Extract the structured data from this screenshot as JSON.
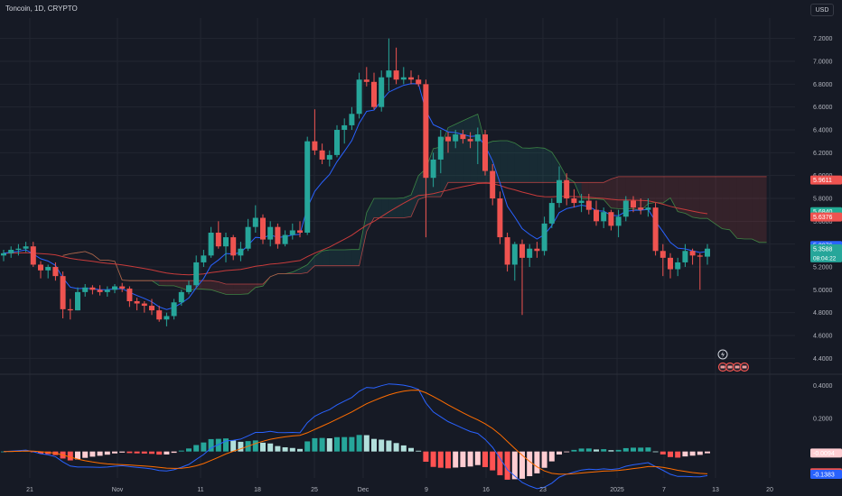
{
  "header": {
    "title": "Toncoin, 1D, CRYPTO",
    "currency": "USD"
  },
  "colors": {
    "background": "#161a25",
    "up": "#26a69a",
    "down": "#ef5350",
    "grid": "#222631",
    "macd": "#2962ff",
    "signal": "#ff6d00",
    "hist_up_strong": "#26a69a",
    "hist_up_weak": "#b2dfdb",
    "hist_down_strong": "#ff5252",
    "hist_down_weak": "#ffcdd2"
  },
  "chart_data": {
    "type": "candlestick",
    "x_ticks": [
      "21",
      "Nov",
      "11",
      "18",
      "25",
      "Dec",
      "9",
      "16",
      "23",
      "2025",
      "7",
      "13",
      "20"
    ],
    "y_ticks": [
      "4.4000",
      "4.6000",
      "4.8000",
      "5.0000",
      "5.2000",
      "5.4000",
      "5.6000",
      "5.8000",
      "6.0000",
      "6.2000",
      "6.4000",
      "6.6000",
      "6.8000",
      "7.0000",
      "7.2000"
    ],
    "ylim": [
      4.3,
      7.3
    ],
    "candles": [
      [
        5.3,
        5.35,
        5.25,
        5.32
      ],
      [
        5.32,
        5.38,
        5.28,
        5.35
      ],
      [
        5.35,
        5.4,
        5.3,
        5.36
      ],
      [
        5.36,
        5.42,
        5.33,
        5.38
      ],
      [
        5.38,
        5.42,
        5.2,
        5.22
      ],
      [
        5.22,
        5.25,
        5.1,
        5.17
      ],
      [
        5.17,
        5.22,
        5.1,
        5.2
      ],
      [
        5.2,
        5.24,
        5.08,
        5.12
      ],
      [
        5.12,
        5.16,
        4.75,
        4.83
      ],
      [
        4.83,
        4.92,
        4.74,
        4.82
      ],
      [
        4.82,
        5.02,
        4.82,
        4.98
      ],
      [
        4.98,
        5.05,
        4.94,
        5.02
      ],
      [
        5.02,
        5.04,
        4.96,
        5.0
      ],
      [
        5.0,
        5.04,
        4.95,
        4.98
      ],
      [
        4.98,
        5.03,
        4.94,
        5.0
      ],
      [
        5.0,
        5.05,
        4.97,
        5.03
      ],
      [
        5.03,
        5.06,
        4.98,
        5.01
      ],
      [
        5.01,
        5.03,
        4.85,
        4.9
      ],
      [
        4.9,
        4.93,
        4.82,
        4.88
      ],
      [
        4.88,
        4.9,
        4.8,
        4.86
      ],
      [
        4.86,
        4.92,
        4.78,
        4.82
      ],
      [
        4.82,
        4.86,
        4.72,
        4.74
      ],
      [
        4.74,
        4.8,
        4.68,
        4.77
      ],
      [
        4.77,
        4.92,
        4.74,
        4.89
      ],
      [
        4.89,
        5.0,
        4.86,
        4.98
      ],
      [
        4.98,
        5.08,
        4.96,
        5.04
      ],
      [
        5.04,
        5.3,
        5.02,
        5.24
      ],
      [
        5.24,
        5.35,
        5.2,
        5.3
      ],
      [
        5.3,
        5.55,
        5.28,
        5.5
      ],
      [
        5.5,
        5.6,
        5.36,
        5.38
      ],
      [
        5.38,
        5.5,
        5.24,
        5.46
      ],
      [
        5.46,
        5.48,
        5.26,
        5.3
      ],
      [
        5.3,
        5.42,
        5.25,
        5.36
      ],
      [
        5.36,
        5.62,
        5.34,
        5.55
      ],
      [
        5.55,
        5.74,
        5.5,
        5.63
      ],
      [
        5.63,
        5.66,
        5.4,
        5.44
      ],
      [
        5.44,
        5.6,
        5.38,
        5.55
      ],
      [
        5.55,
        5.58,
        5.36,
        5.4
      ],
      [
        5.4,
        5.52,
        5.38,
        5.48
      ],
      [
        5.48,
        5.58,
        5.44,
        5.52
      ],
      [
        5.52,
        5.6,
        5.46,
        5.5
      ],
      [
        5.5,
        6.34,
        5.48,
        6.3
      ],
      [
        6.3,
        6.58,
        6.18,
        6.22
      ],
      [
        6.22,
        6.28,
        6.1,
        6.14
      ],
      [
        6.14,
        6.22,
        6.08,
        6.18
      ],
      [
        6.18,
        6.44,
        6.16,
        6.4
      ],
      [
        6.4,
        6.5,
        6.28,
        6.44
      ],
      [
        6.44,
        6.6,
        6.4,
        6.54
      ],
      [
        6.54,
        6.9,
        6.5,
        6.84
      ],
      [
        6.84,
        6.95,
        6.78,
        6.82
      ],
      [
        6.82,
        6.9,
        6.58,
        6.6
      ],
      [
        6.6,
        6.92,
        6.56,
        6.86
      ],
      [
        6.86,
        7.2,
        6.74,
        6.92
      ],
      [
        6.92,
        7.12,
        6.8,
        6.84
      ],
      [
        6.84,
        6.95,
        6.8,
        6.86
      ],
      [
        6.86,
        6.92,
        6.8,
        6.84
      ],
      [
        6.84,
        6.88,
        6.78,
        6.8
      ],
      [
        6.8,
        6.84,
        5.46,
        5.98
      ],
      [
        5.98,
        6.2,
        5.9,
        6.14
      ],
      [
        6.14,
        6.4,
        6.02,
        6.34
      ],
      [
        6.34,
        6.38,
        6.2,
        6.3
      ],
      [
        6.3,
        6.4,
        6.24,
        6.36
      ],
      [
        6.36,
        6.4,
        6.28,
        6.32
      ],
      [
        6.32,
        6.38,
        6.24,
        6.3
      ],
      [
        6.3,
        6.42,
        6.1,
        6.36
      ],
      [
        6.36,
        6.4,
        6.0,
        6.04
      ],
      [
        6.04,
        6.1,
        5.74,
        5.8
      ],
      [
        5.8,
        5.86,
        5.4,
        5.46
      ],
      [
        5.46,
        5.5,
        5.16,
        5.22
      ],
      [
        5.22,
        5.42,
        5.08,
        5.4
      ],
      [
        5.4,
        5.44,
        4.78,
        5.28
      ],
      [
        5.28,
        5.4,
        5.2,
        5.36
      ],
      [
        5.36,
        5.42,
        5.28,
        5.34
      ],
      [
        5.34,
        5.64,
        5.3,
        5.58
      ],
      [
        5.58,
        5.8,
        5.54,
        5.76
      ],
      [
        5.76,
        6.08,
        5.72,
        5.96
      ],
      [
        5.96,
        6.02,
        5.74,
        5.8
      ],
      [
        5.8,
        5.88,
        5.72,
        5.76
      ],
      [
        5.76,
        5.84,
        5.68,
        5.78
      ],
      [
        5.78,
        5.84,
        5.66,
        5.7
      ],
      [
        5.7,
        5.78,
        5.56,
        5.6
      ],
      [
        5.6,
        5.72,
        5.54,
        5.68
      ],
      [
        5.68,
        5.7,
        5.52,
        5.56
      ],
      [
        5.56,
        5.7,
        5.46,
        5.64
      ],
      [
        5.64,
        5.82,
        5.6,
        5.78
      ],
      [
        5.78,
        5.82,
        5.68,
        5.72
      ],
      [
        5.72,
        5.8,
        5.66,
        5.7
      ],
      [
        5.7,
        5.8,
        5.64,
        5.72
      ],
      [
        5.72,
        5.76,
        5.3,
        5.34
      ],
      [
        5.34,
        5.4,
        5.12,
        5.28
      ],
      [
        5.28,
        5.32,
        5.1,
        5.18
      ],
      [
        5.18,
        5.28,
        5.12,
        5.24
      ],
      [
        5.24,
        5.4,
        5.2,
        5.34
      ],
      [
        5.34,
        5.36,
        5.22,
        5.3
      ],
      [
        5.3,
        5.32,
        5.0,
        5.29
      ],
      [
        5.29,
        5.4,
        5.22,
        5.36
      ]
    ],
    "price_labels": [
      {
        "value": 5.9611,
        "text": "5.9611",
        "color": "#ef5350"
      },
      {
        "value": 5.684,
        "text": "5.6840",
        "color": "#22ab94"
      },
      {
        "value": 5.6376,
        "text": "5.6376",
        "color": "#ef5350"
      },
      {
        "value": 5.3876,
        "text": "5.3876",
        "color": "#2962ff"
      },
      {
        "value": 5.3588,
        "text": "5.3588",
        "sub": "08:04:22",
        "color": "#26a69a"
      }
    ],
    "macd": {
      "ylim": [
        -0.16,
        0.44
      ],
      "y_ticks": [
        "0.2000",
        "0.4000"
      ],
      "labels": [
        {
          "value": -0.0094,
          "text": "-0.0094",
          "color": "#ffcdd2",
          "text_color": "#161a25"
        },
        {
          "value": -0.1289,
          "text": "-0.1289",
          "color": "#ef5350"
        },
        {
          "value": -0.1383,
          "text": "-0.1383",
          "color": "#2962ff"
        }
      ]
    }
  }
}
